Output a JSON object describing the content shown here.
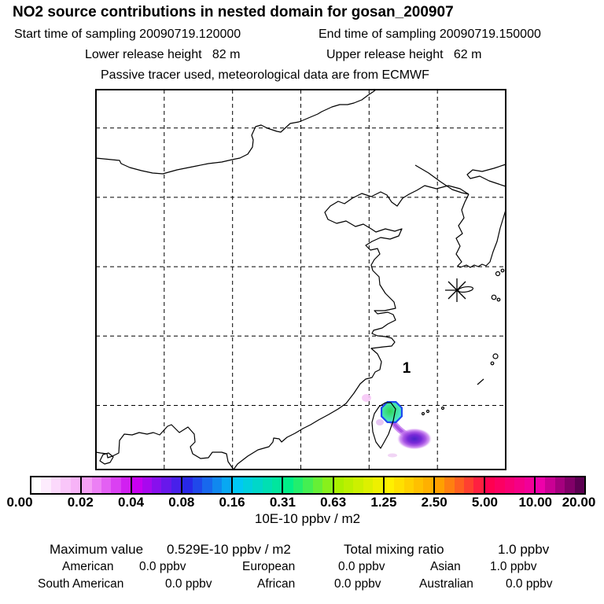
{
  "header": {
    "title": "NO2 source contributions in nested domain for gosan_200907",
    "start_time": "Start time of sampling 20090719.120000",
    "end_time": "End time of sampling 20090719.150000",
    "lower_release": "Lower release height   82 m",
    "upper_release": "Upper release height   62 m",
    "tracer_note": "Passive tracer used, meteorological data are from ECMWF"
  },
  "map": {
    "release_site_label": "1",
    "release_marker": "star-asterisk-with-ellipse",
    "receptor_border_color": "#1f49f0",
    "receptor_fill_center": "#2fd456",
    "receptor_fill_edge": "#56e9e6",
    "plume_core_color": "#4a23c8",
    "plume_mid_color": "#a44fe2",
    "plume_fringe_color": "#e7c0f6"
  },
  "colorbar": {
    "tick_labels": [
      "0.00",
      "0.02",
      "0.04",
      "0.08",
      "0.16",
      "0.31",
      "0.63",
      "1.25",
      "2.50",
      "5.00",
      "10.00",
      "20.00"
    ],
    "stop_colors": [
      "#ffffff",
      "#f5a0f5",
      "#c800f0",
      "#2828e8",
      "#00c8f4",
      "#00ee88",
      "#aaf000",
      "#fff000",
      "#ffa000",
      "#ff0050",
      "#ee00aa",
      "#38003c"
    ],
    "units": "10E-10 ppbv / m2"
  },
  "stats": {
    "maximum_label": "Maximum value",
    "maximum_value": "0.529E-10 ppbv / m2",
    "total_label": "Total mixing ratio",
    "total_value": "1.0 ppbv",
    "regions": [
      {
        "name": "American",
        "value": "0.0 ppbv"
      },
      {
        "name": "European",
        "value": "0.0 ppbv"
      },
      {
        "name": "Asian",
        "value": "1.0 ppbv"
      },
      {
        "name": "South American",
        "value": "0.0 ppbv"
      },
      {
        "name": "African",
        "value": "0.0 ppbv"
      },
      {
        "name": "Australian",
        "value": "0.0 ppbv"
      }
    ]
  },
  "chart_data": {
    "type": "heatmap",
    "title": "NO2 source contributions in nested domain for gosan_200907",
    "colorbar_levels": [
      0.0,
      0.02,
      0.04,
      0.08,
      0.16,
      0.31,
      0.63,
      1.25,
      2.5,
      5.0,
      10.0,
      20.0
    ],
    "colorbar_units": "10E-10 ppbv / m2",
    "maximum_value": "0.529E-10 ppbv / m2",
    "total_mixing_ratio": "1.0 ppbv",
    "region_contributions": {
      "American": "0.0 ppbv",
      "European": "0.0 ppbv",
      "Asian": "1.0 ppbv",
      "South American": "0.0 ppbv",
      "African": "0.0 ppbv",
      "Australian": "0.0 ppbv"
    },
    "annotations": [
      "release point star marker over Gosan/Jeju area",
      "receptor octagon labeled 1 over northern Taiwan (cyan-green fill)",
      "purple concentration plume southeast of Taiwan"
    ],
    "grid": "dashed lat-lon grid, 6 columns x ~5.5 rows",
    "legend_position": "horizontal colorbar below map"
  }
}
